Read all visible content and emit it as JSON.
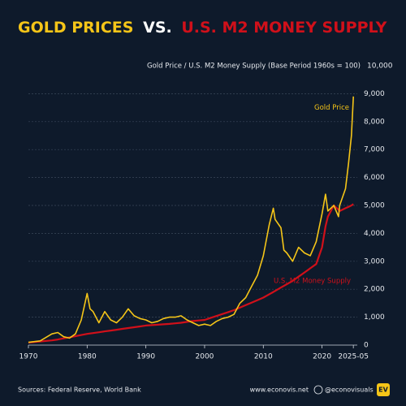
{
  "chart_data": {
    "type": "line",
    "title_parts": [
      "GOLD PRICES",
      "VS.",
      "U.S. M2 MONEY SUPPLY"
    ],
    "title_colors": [
      "#f5c518",
      "#ffffff",
      "#d0101a"
    ],
    "y_label": "Gold Price / U.S. M2 Money Supply (Base Period 1960s = 100)",
    "x": [
      1970,
      1972,
      1974,
      1975,
      1976,
      1977,
      1978,
      1979,
      1980,
      1980.5,
      1981,
      1982,
      1983,
      1984,
      1985,
      1986,
      1987,
      1988,
      1989,
      1990,
      1991,
      1992,
      1993,
      1994,
      1995,
      1996,
      1997,
      1998,
      1999,
      2000,
      2001,
      2002,
      2003,
      2004,
      2005,
      2006,
      2007,
      2008,
      2009,
      2010,
      2011,
      2011.7,
      2012,
      2013,
      2013.5,
      2014,
      2015,
      2016,
      2017,
      2018,
      2019,
      2020,
      2020.6,
      2021,
      2022,
      2022.8,
      2023,
      2024,
      2024.5,
      2025,
      2025.33
    ],
    "series": [
      {
        "name": "Gold Price",
        "color": "#f5c518",
        "values": [
          100,
          150,
          400,
          450,
          300,
          250,
          400,
          900,
          1850,
          1300,
          1200,
          800,
          1200,
          900,
          800,
          1000,
          1300,
          1050,
          950,
          900,
          800,
          850,
          950,
          1000,
          1000,
          1050,
          900,
          800,
          700,
          750,
          700,
          850,
          950,
          1000,
          1100,
          1500,
          1700,
          2100,
          2500,
          3200,
          4300,
          4900,
          4500,
          4200,
          3400,
          3300,
          3000,
          3500,
          3300,
          3200,
          3700,
          4700,
          5400,
          4800,
          5000,
          4600,
          5000,
          5600,
          6500,
          7500,
          8900
        ]
      },
      {
        "name": "U.S. M2 Money Supply",
        "color": "#d0101a",
        "values": [
          90,
          130,
          170,
          200,
          240,
          280,
          320,
          360,
          400,
          415,
          430,
          460,
          490,
          520,
          550,
          580,
          610,
          640,
          670,
          700,
          715,
          730,
          745,
          760,
          780,
          800,
          830,
          860,
          880,
          900,
          970,
          1040,
          1110,
          1180,
          1250,
          1340,
          1430,
          1520,
          1610,
          1700,
          1820,
          1900,
          1940,
          2060,
          2120,
          2180,
          2300,
          2450,
          2600,
          2750,
          2900,
          3500,
          4250,
          4600,
          5000,
          4850,
          4800,
          4900,
          4950,
          5000,
          5050
        ]
      }
    ],
    "xlim": [
      1970,
      2026
    ],
    "xticks": [
      1970,
      1980,
      1990,
      2000,
      2010,
      2020,
      {
        "value": 2025.33,
        "label": "2025-05"
      }
    ],
    "ylim": [
      0,
      10000
    ],
    "yticks": [
      0,
      {
        "value": 1000,
        "label": "1,000"
      },
      {
        "value": 2000,
        "label": "2,000"
      },
      {
        "value": 3000,
        "label": "3,000"
      },
      {
        "value": 4000,
        "label": "4,000"
      },
      {
        "value": 5000,
        "label": "5,000"
      },
      {
        "value": 6000,
        "label": "6,000"
      },
      {
        "value": 7000,
        "label": "7,000"
      },
      {
        "value": 8000,
        "label": "8,000"
      },
      {
        "value": 9000,
        "label": "9,000"
      },
      {
        "value": 10000,
        "label": "10,000"
      }
    ],
    "grid": true,
    "source": "Sources: Federal Reserve, World Bank",
    "website": "www.econovis.net",
    "handle": "@econovisuals",
    "logo": "EV"
  }
}
